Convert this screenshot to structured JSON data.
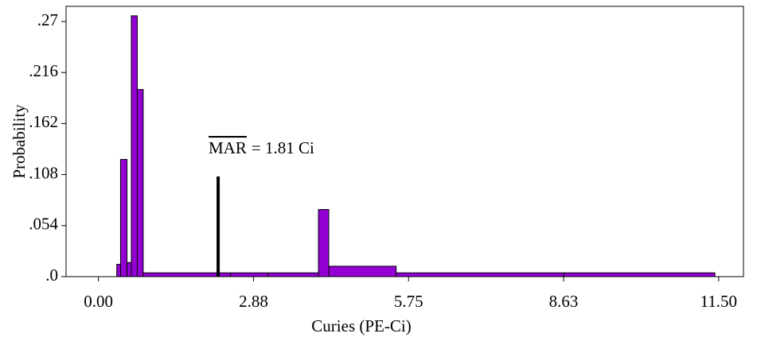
{
  "chart_data": {
    "type": "histogram",
    "xlabel": "Curies (PE-Ci)",
    "ylabel": "Probability",
    "bins": [
      0.34,
      0.41,
      0.53,
      0.61,
      0.72,
      0.83,
      2.45,
      3.15,
      4.08,
      4.27,
      5.52,
      8.63,
      11.43
    ],
    "counts": [
      0.013,
      0.124,
      0.015,
      0.276,
      0.198,
      0.004,
      0.004,
      0.004,
      0.071,
      0.011,
      0.004,
      0.004
    ],
    "color": "#9400d3",
    "xlim": [
      -0.6,
      11.96
    ],
    "ylim": [
      0,
      0.286
    ],
    "xticks": [
      {
        "value": 0,
        "label": "0.00"
      },
      {
        "value": 2.875,
        "label": "2.88"
      },
      {
        "value": 5.75,
        "label": "5.75"
      },
      {
        "value": 8.625,
        "label": "8.63"
      },
      {
        "value": 11.5,
        "label": "11.50"
      }
    ],
    "yticks": [
      {
        "value": 0,
        "label": ".0"
      },
      {
        "value": 0.054,
        "label": ".054"
      },
      {
        "value": 0.108,
        "label": ".108"
      },
      {
        "value": 0.162,
        "label": ".162"
      },
      {
        "value": 0.216,
        "label": ".216"
      },
      {
        "value": 0.27,
        "label": ".27"
      }
    ],
    "marker": {
      "x": 2.22,
      "height": 0.106
    },
    "annotation": {
      "overlined": "MAR",
      "text": "= 1.81 Ci"
    }
  }
}
